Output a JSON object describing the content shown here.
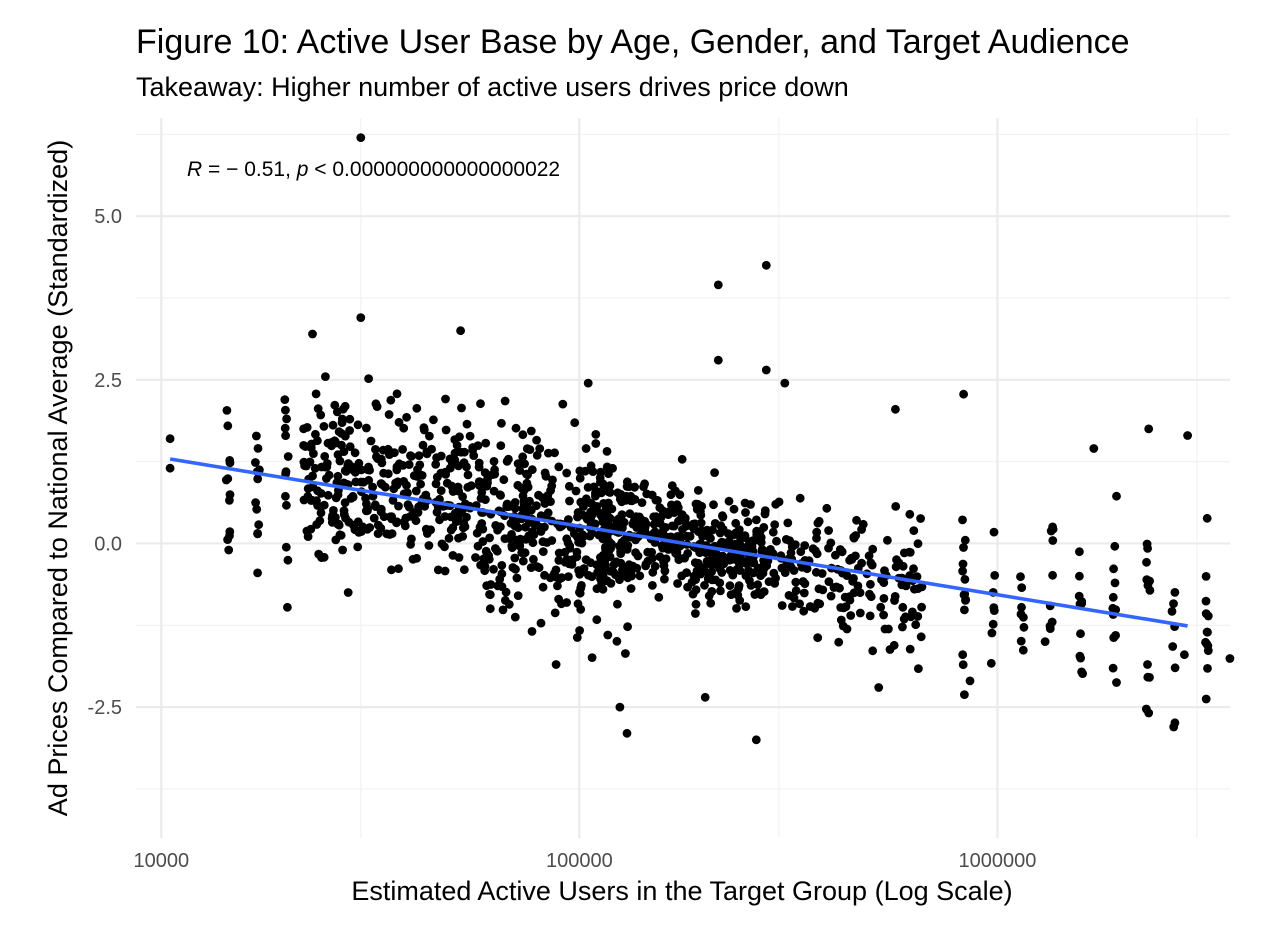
{
  "chart_data": {
    "type": "scatter",
    "title": "Figure 10: Active User Base by Age, Gender, and Target Audience",
    "subtitle": "Takeaway: Higher number of active users drives price down",
    "xlabel": "Estimated Active Users in the Target Group (Log Scale)",
    "ylabel": "Ad Prices Compared to National Average (Standardized)",
    "x_scale": "log10",
    "xlim": [
      8700,
      3600000
    ],
    "ylim": [
      -4.5,
      6.5
    ],
    "x_ticks": [
      10000,
      100000,
      1000000
    ],
    "x_tick_labels": [
      "10000",
      "100000",
      "1000000"
    ],
    "y_ticks": [
      -2.5,
      0.0,
      2.5,
      5.0
    ],
    "y_tick_labels": [
      "-2.5",
      "0.0",
      "2.5",
      "5.0"
    ],
    "grid": true,
    "annotation": {
      "r_symbol": "R",
      "r_text": " = − 0.51, ",
      "p_symbol": "p",
      "p_text": " < 0.000000000000000022"
    },
    "trend_line": {
      "color": "#3366ff",
      "points": [
        [
          10500,
          1.29
        ],
        [
          2850000,
          -1.26
        ]
      ]
    },
    "point_color": "#000000",
    "points_note": "Representative sample of ~1250 observations read from the scatter; notable points listed explicitly.",
    "points": [
      [
        10500,
        1.6
      ],
      [
        10500,
        1.15
      ],
      [
        30000,
        6.2
      ],
      [
        280000,
        4.25
      ],
      [
        215000,
        3.95
      ],
      [
        23000,
        3.2
      ],
      [
        30000,
        3.45
      ],
      [
        52000,
        3.25
      ],
      [
        215000,
        2.8
      ],
      [
        280000,
        2.65
      ],
      [
        830000,
        2.28
      ],
      [
        310000,
        2.45
      ],
      [
        105000,
        2.45
      ],
      [
        570000,
        2.05
      ],
      [
        2300000,
        1.75
      ],
      [
        2850000,
        1.65
      ],
      [
        125000,
        -2.5
      ],
      [
        130000,
        -2.9
      ],
      [
        265000,
        -3.0
      ],
      [
        200000,
        -2.35
      ],
      [
        860000,
        -2.1
      ],
      [
        520000,
        -2.2
      ],
      [
        88000,
        -1.85
      ],
      [
        14500,
        -0.1
      ],
      [
        17000,
        -0.45
      ],
      [
        28000,
        -0.75
      ],
      [
        2800000,
        -1.7
      ],
      [
        1300000,
        -1.5
      ],
      [
        1700000,
        1.45
      ],
      [
        33000,
        0.15
      ]
    ]
  }
}
